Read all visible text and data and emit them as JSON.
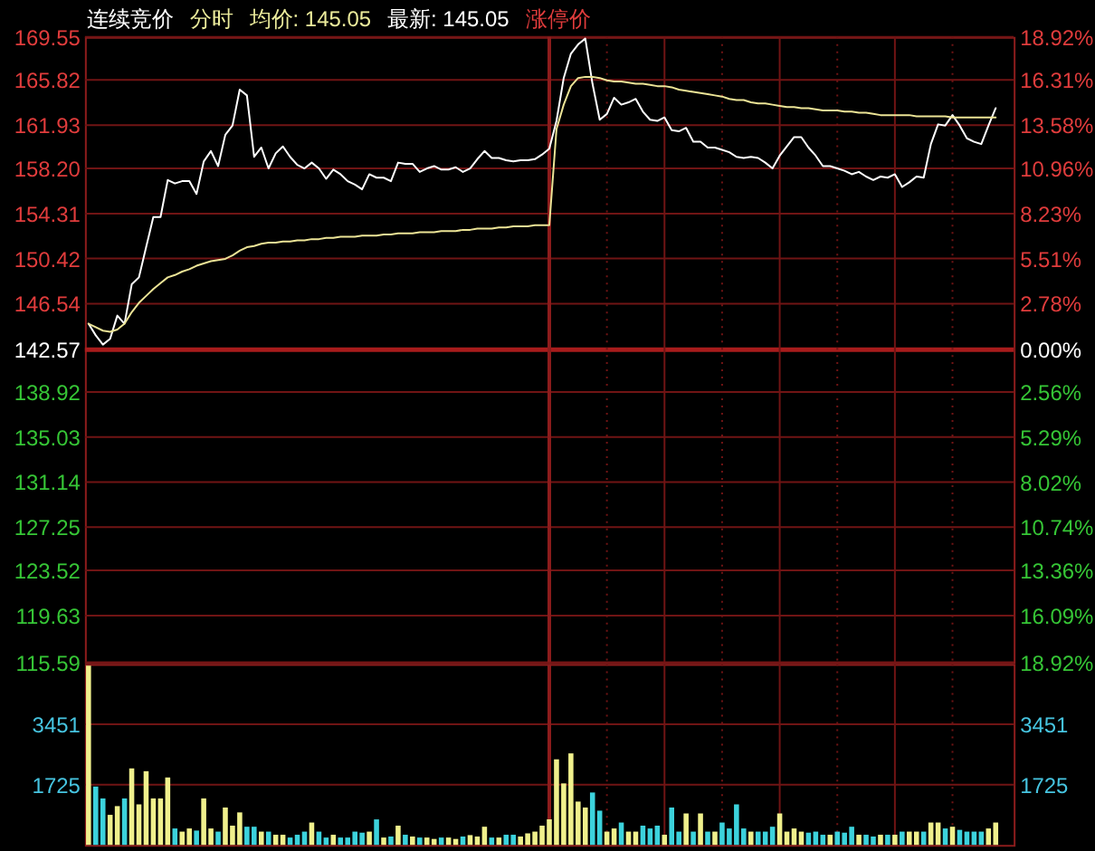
{
  "chart_data": [
    {
      "type": "line",
      "categories": [
        null,
        null,
        null,
        null,
        null,
        null,
        null,
        null,
        null,
        null,
        null,
        null,
        null,
        null,
        null,
        null,
        null,
        null,
        null,
        null,
        null,
        null,
        null,
        null,
        null,
        null,
        null,
        null,
        null,
        null,
        null,
        null,
        null,
        null,
        null,
        null,
        null,
        null,
        null,
        null,
        null,
        null,
        null,
        null,
        null,
        null,
        null,
        null,
        null,
        null,
        null,
        null,
        null,
        null,
        null,
        null,
        null,
        null,
        null,
        null,
        null,
        null,
        null,
        null,
        null,
        null,
        null,
        null,
        null,
        null,
        null,
        null,
        null,
        null,
        null,
        null,
        null,
        null,
        null,
        null,
        null,
        null,
        null,
        null,
        null,
        null,
        null,
        null,
        null,
        null,
        null,
        null,
        null,
        null,
        null,
        null,
        null,
        null,
        null,
        null,
        null,
        null,
        null,
        null,
        null,
        null,
        null,
        null,
        null,
        null,
        null,
        null,
        null,
        null,
        null,
        null,
        null,
        null,
        null,
        null,
        null,
        null,
        null,
        null,
        null,
        null,
        null,
        null,
        null
      ],
      "series": [
        {
          "color": "#ffffff",
          "values": [
            144.8,
            143.8,
            143.0,
            143.5,
            145.5,
            144.8,
            148.2,
            148.8,
            151.4,
            154.0,
            154.0,
            157.2,
            156.9,
            157.1,
            157.1,
            156.0,
            158.8,
            159.7,
            158.4,
            161.1,
            161.9,
            165.0,
            164.5,
            159.2,
            160.0,
            158.2,
            159.5,
            160.1,
            159.2,
            158.5,
            158.2,
            158.7,
            158.2,
            157.3,
            158.1,
            157.7,
            157.1,
            156.8,
            156.4,
            157.7,
            157.4,
            157.4,
            157.1,
            158.7,
            158.6,
            158.6,
            157.9,
            158.2,
            158.4,
            158.1,
            158.1,
            158.3,
            157.9,
            158.2,
            159.0,
            159.7,
            159.1,
            159.1,
            158.9,
            158.8,
            158.9,
            158.9,
            159.0,
            159.4,
            159.9,
            162.3,
            166.0,
            168.1,
            168.9,
            169.4,
            165.5,
            162.4,
            162.9,
            164.3,
            163.7,
            163.9,
            164.2,
            163.1,
            162.4,
            162.3,
            162.6,
            161.5,
            161.4,
            161.7,
            160.5,
            160.5,
            160.0,
            160.0,
            159.8,
            159.6,
            159.2,
            159.1,
            159.2,
            159.1,
            158.7,
            158.2,
            159.3,
            160.1,
            160.9,
            160.9,
            160.0,
            159.3,
            158.4,
            158.4,
            158.2,
            158.0,
            157.7,
            157.9,
            157.5,
            157.2,
            157.5,
            157.4,
            157.7,
            156.6,
            157.0,
            157.5,
            157.4,
            160.3,
            162.0,
            161.9,
            162.8,
            161.9,
            160.8,
            160.5,
            160.3,
            161.9,
            163.4,
            null,
            null
          ]
        },
        {
          "color": "#ece496",
          "values": [
            144.8,
            144.5,
            144.2,
            144.1,
            144.3,
            144.8,
            145.8,
            146.6,
            147.2,
            147.8,
            148.3,
            148.8,
            149.0,
            149.3,
            149.5,
            149.8,
            150.0,
            150.2,
            150.3,
            150.4,
            150.7,
            151.1,
            151.4,
            151.5,
            151.7,
            151.8,
            151.8,
            151.9,
            151.9,
            152.0,
            152.0,
            152.1,
            152.1,
            152.2,
            152.2,
            152.3,
            152.3,
            152.3,
            152.4,
            152.4,
            152.4,
            152.5,
            152.5,
            152.6,
            152.6,
            152.6,
            152.7,
            152.7,
            152.7,
            152.8,
            152.8,
            152.8,
            152.9,
            152.9,
            153.0,
            153.0,
            153.0,
            153.1,
            153.1,
            153.2,
            153.2,
            153.2,
            153.3,
            153.3,
            153.3,
            161.6,
            163.7,
            165.3,
            166.0,
            166.1,
            166.1,
            166.0,
            165.8,
            165.7,
            165.7,
            165.6,
            165.5,
            165.5,
            165.4,
            165.3,
            165.3,
            165.2,
            165.0,
            164.9,
            164.8,
            164.7,
            164.6,
            164.5,
            164.4,
            164.2,
            164.1,
            164.1,
            163.9,
            163.8,
            163.8,
            163.7,
            163.6,
            163.5,
            163.5,
            163.4,
            163.4,
            163.3,
            163.2,
            163.2,
            163.2,
            163.1,
            163.1,
            163.0,
            163.0,
            162.9,
            162.8,
            162.8,
            162.8,
            162.8,
            162.8,
            162.7,
            162.7,
            162.7,
            162.7,
            162.7,
            162.6,
            162.6,
            162.6,
            162.6,
            162.6,
            162.6,
            162.6,
            null,
            null
          ]
        }
      ],
      "ylim": [
        115.59,
        169.55
      ],
      "yticks": [
        115.59,
        119.63,
        123.52,
        127.25,
        131.14,
        135.03,
        138.92,
        142.57,
        146.54,
        150.42,
        154.31,
        {
          "value": 158.2,
          "label": "158.20"
        },
        161.93,
        165.82,
        169.55
      ],
      "y2lim": [
        -18.92,
        18.92
      ],
      "y2ticks": [
        {
          "value": -18.92,
          "label": "18.92%"
        },
        {
          "value": -16.09,
          "label": "16.09%"
        },
        {
          "value": -13.36,
          "label": "13.36%"
        },
        {
          "value": -10.74,
          "label": "10.74%"
        },
        {
          "value": -8.02,
          "label": "8.02%"
        },
        {
          "value": -5.29,
          "label": "5.29%"
        },
        {
          "value": -2.56,
          "label": "2.56%"
        },
        {
          "value": 0,
          "label": "0.00%"
        },
        {
          "value": 2.78,
          "label": "2.78%"
        },
        {
          "value": 5.51,
          "label": "5.51%"
        },
        {
          "value": 8.23,
          "label": "8.23%"
        },
        {
          "value": 10.96,
          "label": "10.96%"
        },
        {
          "value": 13.58,
          "label": "13.58%"
        },
        {
          "value": 16.31,
          "label": "16.31%"
        },
        {
          "value": 18.92,
          "label": "18.92%"
        }
      ],
      "ref_lines": [
        {
          "axis": "y2",
          "value": 0,
          "color": "#a81c1c",
          "line_style": "solid"
        }
      ],
      "grid": true,
      "annotations": [
        "连续竞价",
        "分时",
        "均价: 145.05",
        "最新: 145.05",
        "涨停价"
      ]
    },
    {
      "type": "bar",
      "categories": [
        null,
        null,
        null,
        null,
        null,
        null,
        null,
        null,
        null,
        null,
        null,
        null,
        null,
        null,
        null,
        null,
        null,
        null,
        null,
        null,
        null,
        null,
        null,
        null,
        null,
        null,
        null,
        null,
        null,
        null,
        null,
        null,
        null,
        null,
        null,
        null,
        null,
        null,
        null,
        null,
        null,
        null,
        null,
        null,
        null,
        null,
        null,
        null,
        null,
        null,
        null,
        null,
        null,
        null,
        null,
        null,
        null,
        null,
        null,
        null,
        null,
        null,
        null,
        null,
        null,
        null,
        null,
        null,
        null,
        null,
        null,
        null,
        null,
        null,
        null,
        null,
        null,
        null,
        null,
        null,
        null,
        null,
        null,
        null,
        null,
        null,
        null,
        null,
        null,
        null,
        null,
        null,
        null,
        null,
        null,
        null,
        null,
        null,
        null,
        null,
        null,
        null,
        null,
        null,
        null,
        null,
        null,
        null,
        null,
        null,
        null,
        null,
        null,
        null,
        null,
        null,
        null,
        null,
        null,
        null,
        null,
        null,
        null,
        null,
        null,
        null,
        null,
        null,
        null
      ],
      "values": [
        5130,
        1670,
        1330,
        860,
        1110,
        1330,
        2190,
        1160,
        2110,
        1330,
        1330,
        1930,
        470,
        380,
        470,
        410,
        1330,
        470,
        380,
        1070,
        550,
        930,
        520,
        520,
        380,
        380,
        290,
        290,
        210,
        290,
        380,
        640,
        380,
        210,
        290,
        210,
        210,
        380,
        350,
        380,
        730,
        210,
        240,
        550,
        290,
        240,
        210,
        210,
        170,
        210,
        210,
        170,
        240,
        280,
        240,
        520,
        210,
        210,
        290,
        290,
        240,
        330,
        380,
        550,
        730,
        2450,
        1760,
        2620,
        1240,
        1070,
        1500,
        980,
        380,
        470,
        640,
        380,
        380,
        550,
        470,
        550,
        290,
        1070,
        380,
        900,
        380,
        900,
        380,
        380,
        640,
        470,
        1160,
        470,
        380,
        380,
        380,
        520,
        900,
        380,
        470,
        380,
        350,
        380,
        290,
        290,
        380,
        350,
        520,
        290,
        290,
        240,
        290,
        290,
        290,
        380,
        380,
        380,
        380,
        640,
        640,
        470,
        520,
        430,
        380,
        380,
        380,
        470,
        640,
        null,
        null
      ],
      "colors": [
        "#f0f08c",
        "#3cd2dc",
        "#3cd2dc",
        "#f0f08c",
        "#f0f08c",
        "#3cd2dc",
        "#f0f08c",
        "#f0f08c",
        "#f0f08c",
        "#f0f08c",
        "#f0f08c",
        "#f0f08c",
        "#3cd2dc",
        "#f0f08c",
        "#f0f08c",
        "#3cd2dc",
        "#f0f08c",
        "#f0f08c",
        "#3cd2dc",
        "#f0f08c",
        "#f0f08c",
        "#f0f08c",
        "#3cd2dc",
        "#3cd2dc",
        "#f0f08c",
        "#3cd2dc",
        "#f0f08c",
        "#f0f08c",
        "#3cd2dc",
        "#3cd2dc",
        "#3cd2dc",
        "#f0f08c",
        "#3cd2dc",
        "#3cd2dc",
        "#f0f08c",
        "#3cd2dc",
        "#3cd2dc",
        "#3cd2dc",
        "#3cd2dc",
        "#f0f08c",
        "#3cd2dc",
        "#f0f08c",
        "#3cd2dc",
        "#f0f08c",
        "#3cd2dc",
        "#f0f08c",
        "#3cd2dc",
        "#f0f08c",
        "#f0f08c",
        "#3cd2dc",
        "#f0f08c",
        "#f0f08c",
        "#3cd2dc",
        "#f0f08c",
        "#f0f08c",
        "#f0f08c",
        "#3cd2dc",
        "#f0f08c",
        "#3cd2dc",
        "#3cd2dc",
        "#f0f08c",
        "#f0f08c",
        "#f0f08c",
        "#f0f08c",
        "#f0f08c",
        "#f0f08c",
        "#f0f08c",
        "#f0f08c",
        "#f0f08c",
        "#f0f08c",
        "#3cd2dc",
        "#3cd2dc",
        "#f0f08c",
        "#f0f08c",
        "#3cd2dc",
        "#f0f08c",
        "#f0f08c",
        "#3cd2dc",
        "#3cd2dc",
        "#3cd2dc",
        "#f0f08c",
        "#3cd2dc",
        "#3cd2dc",
        "#f0f08c",
        "#3cd2dc",
        "#f0f08c",
        "#3cd2dc",
        "#f0f08c",
        "#3cd2dc",
        "#3cd2dc",
        "#3cd2dc",
        "#3cd2dc",
        "#f0f08c",
        "#3cd2dc",
        "#3cd2dc",
        "#3cd2dc",
        "#f0f08c",
        "#f0f08c",
        "#f0f08c",
        "#f0f08c",
        "#3cd2dc",
        "#3cd2dc",
        "#3cd2dc",
        "#f0f08c",
        "#3cd2dc",
        "#3cd2dc",
        "#3cd2dc",
        "#f0f08c",
        "#3cd2dc",
        "#3cd2dc",
        "#f0f08c",
        "#3cd2dc",
        "#f0f08c",
        "#3cd2dc",
        "#f0f08c",
        "#f0f08c",
        "#3cd2dc",
        "#f0f08c",
        "#f0f08c",
        "#3cd2dc",
        "#f0f08c",
        "#3cd2dc",
        "#3cd2dc",
        "#3cd2dc",
        "#3cd2dc",
        "#f0f08c",
        "#f0f08c",
        "#f0f08c",
        "#f0f08c"
      ],
      "ylim": [
        0,
        5176
      ],
      "yticks": [
        1725,
        3451
      ],
      "y2lim": [
        0,
        5176
      ],
      "y2ticks": [
        1725,
        3451
      ],
      "grid": true
    }
  ]
}
